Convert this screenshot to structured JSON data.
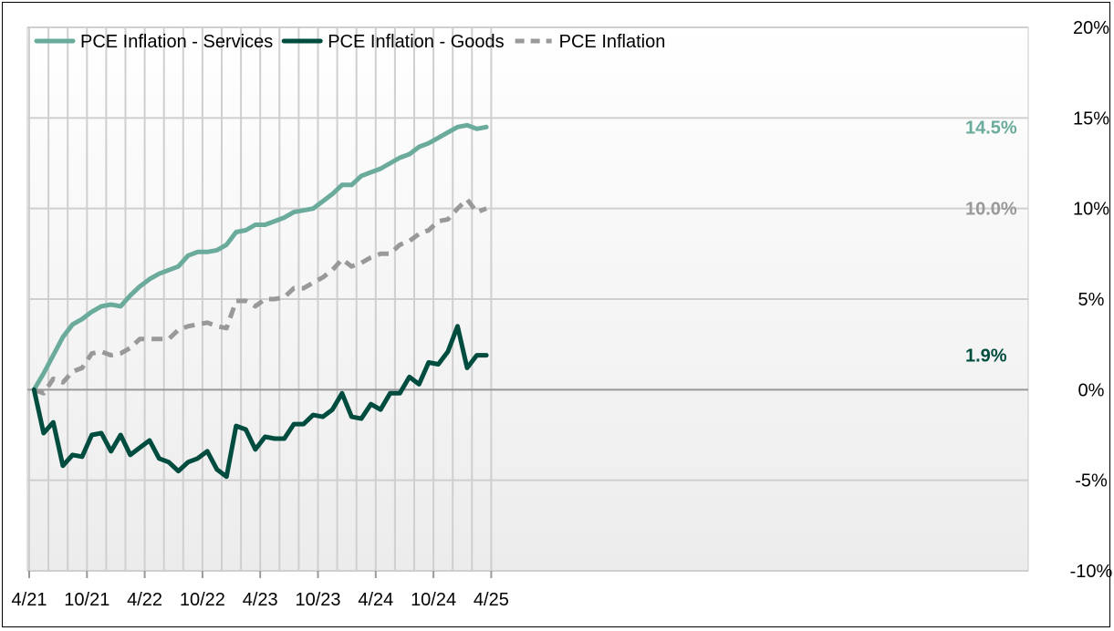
{
  "chart_data": {
    "type": "line",
    "title": "",
    "xlabel": "",
    "ylabel": "",
    "x_tick_labels": [
      "4/21",
      "10/21",
      "4/22",
      "10/22",
      "4/23",
      "10/23",
      "4/24",
      "10/24",
      "4/25"
    ],
    "xlim": [
      "4/21",
      "5/25"
    ],
    "ylim": [
      -10,
      20
    ],
    "y_ticks": [
      -10,
      -5,
      0,
      5,
      10,
      15,
      20
    ],
    "y_tick_labels": [
      "-10%",
      "-5%",
      "0%",
      "5%",
      "10%",
      "15%",
      "20%"
    ],
    "y_axis_side": "right",
    "grid": true,
    "legend_position": "top-left",
    "x": [
      "4/21",
      "5/21",
      "6/21",
      "7/21",
      "8/21",
      "9/21",
      "10/21",
      "11/21",
      "12/21",
      "1/22",
      "2/22",
      "3/22",
      "4/22",
      "5/22",
      "6/22",
      "7/22",
      "8/22",
      "9/22",
      "10/22",
      "11/22",
      "12/22",
      "1/23",
      "2/23",
      "3/23",
      "4/23",
      "5/23",
      "6/23",
      "7/23",
      "8/23",
      "9/23",
      "10/23",
      "11/23",
      "12/23",
      "1/24",
      "2/24",
      "3/24",
      "4/24",
      "5/24",
      "6/24",
      "7/24",
      "8/24",
      "9/24",
      "10/24",
      "11/24",
      "12/24",
      "1/25",
      "2/25",
      "3/25"
    ],
    "series": [
      {
        "name": "PCE Inflation - Services",
        "color": "#6aab9c",
        "style": "solid",
        "end_label": "14.5%",
        "values": [
          0.0,
          0.9,
          1.9,
          2.9,
          3.6,
          3.9,
          4.3,
          4.6,
          4.7,
          4.6,
          5.2,
          5.7,
          6.1,
          6.4,
          6.6,
          6.8,
          7.4,
          7.6,
          7.6,
          7.7,
          8.0,
          8.7,
          8.8,
          9.1,
          9.1,
          9.3,
          9.5,
          9.8,
          9.9,
          10.0,
          10.4,
          10.8,
          11.3,
          11.3,
          11.8,
          12.0,
          12.2,
          12.5,
          12.8,
          13.0,
          13.4,
          13.6,
          13.9,
          14.2,
          14.5,
          14.6,
          14.4,
          14.5
        ]
      },
      {
        "name": "PCE Inflation - Goods",
        "color": "#004c3f",
        "style": "solid",
        "end_label": "1.9%",
        "values": [
          0.0,
          -2.4,
          -1.8,
          -4.2,
          -3.6,
          -3.7,
          -2.5,
          -2.4,
          -3.4,
          -2.5,
          -3.6,
          -3.2,
          -2.8,
          -3.8,
          -4.0,
          -4.5,
          -4.0,
          -3.8,
          -3.4,
          -4.4,
          -4.8,
          -2.0,
          -2.2,
          -3.3,
          -2.6,
          -2.7,
          -2.7,
          -1.9,
          -1.9,
          -1.4,
          -1.5,
          -1.1,
          -0.2,
          -1.5,
          -1.6,
          -0.8,
          -1.1,
          -0.2,
          -0.2,
          0.7,
          0.3,
          1.5,
          1.4,
          2.1,
          3.5,
          1.2,
          1.9,
          1.9
        ]
      },
      {
        "name": "PCE Inflation",
        "color": "#999999",
        "style": "dashed",
        "end_label": "10.0%",
        "values": [
          0.0,
          -0.2,
          0.6,
          0.4,
          1.0,
          1.2,
          2.0,
          2.1,
          1.9,
          2.0,
          2.3,
          2.8,
          2.8,
          2.8,
          2.8,
          3.3,
          3.5,
          3.6,
          3.7,
          3.5,
          3.4,
          4.9,
          4.9,
          4.6,
          5.0,
          5.0,
          5.1,
          5.6,
          5.6,
          5.9,
          6.2,
          6.6,
          7.2,
          6.8,
          7.0,
          7.3,
          7.5,
          7.5,
          8.0,
          8.2,
          8.6,
          8.8,
          9.3,
          9.4,
          10.0,
          10.5,
          9.8,
          10.0
        ]
      }
    ]
  }
}
